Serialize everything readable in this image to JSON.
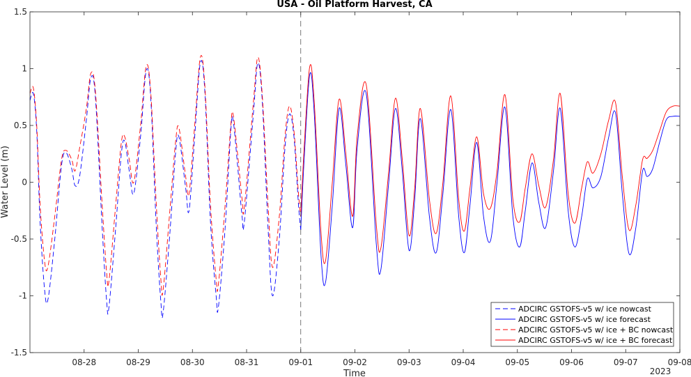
{
  "chart_data": {
    "type": "line",
    "title": "USA - Oil Platform Harvest, CA",
    "xlabel": "Time",
    "ylabel": "Water Level (m)",
    "year_label": "2023",
    "x_ticks": [
      "08-28",
      "08-29",
      "08-30",
      "08-31",
      "09-01",
      "09-02",
      "09-03",
      "09-04",
      "09-05",
      "09-06",
      "09-07",
      "09-08"
    ],
    "y_ticks": [
      -1.5,
      -1,
      -0.5,
      0,
      0.5,
      1,
      1.5
    ],
    "ylim": [
      -1.5,
      1.5
    ],
    "xlim": [
      "2023-08-27 00:00",
      "2023-09-08 00:00"
    ],
    "nowcast_end": "2023-09-01 00:00",
    "grid": false,
    "legend_position": "bottom-right",
    "series": [
      {
        "name": "ADCIRC GSTOFS-v5 w/ ice nowcast",
        "color": "#0000ff",
        "style": "dashed",
        "points": [
          [
            "2023-08-27 00:00",
            0.72
          ],
          [
            "2023-08-27 01:30",
            0.78
          ],
          [
            "2023-08-27 03:00",
            0.45
          ],
          [
            "2023-08-27 04:30",
            -0.35
          ],
          [
            "2023-08-27 06:30",
            -0.95
          ],
          [
            "2023-08-27 08:00",
            -1.03
          ],
          [
            "2023-08-27 11:00",
            -0.5
          ],
          [
            "2023-08-27 14:00",
            0.15
          ],
          [
            "2023-08-27 16:00",
            0.26
          ],
          [
            "2023-08-27 18:30",
            0.12
          ],
          [
            "2023-08-27 20:00",
            -0.03
          ],
          [
            "2023-08-27 22:00",
            0.05
          ],
          [
            "2023-08-28 01:00",
            0.55
          ],
          [
            "2023-08-28 03:00",
            0.92
          ],
          [
            "2023-08-28 05:00",
            0.75
          ],
          [
            "2023-08-28 08:00",
            -0.4
          ],
          [
            "2023-08-28 10:00",
            -1.05
          ],
          [
            "2023-08-28 11:00",
            -1.1
          ],
          [
            "2023-08-28 14:00",
            -0.4
          ],
          [
            "2023-08-28 16:30",
            0.25
          ],
          [
            "2023-08-28 18:00",
            0.36
          ],
          [
            "2023-08-28 20:00",
            0.1
          ],
          [
            "2023-08-28 22:00",
            -0.1
          ],
          [
            "2023-08-29 01:00",
            0.4
          ],
          [
            "2023-08-29 03:30",
            0.98
          ],
          [
            "2023-08-29 05:30",
            0.75
          ],
          [
            "2023-08-29 08:00",
            -0.4
          ],
          [
            "2023-08-29 10:00",
            -1.05
          ],
          [
            "2023-08-29 11:00",
            -1.15
          ],
          [
            "2023-08-29 14:00",
            -0.45
          ],
          [
            "2023-08-29 16:30",
            0.25
          ],
          [
            "2023-08-29 18:00",
            0.4
          ],
          [
            "2023-08-29 21:00",
            -0.05
          ],
          [
            "2023-08-29 22:30",
            -0.25
          ],
          [
            "2023-08-30 01:00",
            0.4
          ],
          [
            "2023-08-30 03:30",
            1.05
          ],
          [
            "2023-08-30 05:30",
            0.8
          ],
          [
            "2023-08-30 08:00",
            -0.35
          ],
          [
            "2023-08-30 10:30",
            -1.0
          ],
          [
            "2023-08-30 11:30",
            -1.1
          ],
          [
            "2023-08-30 14:30",
            -0.4
          ],
          [
            "2023-08-30 17:00",
            0.45
          ],
          [
            "2023-08-30 18:00",
            0.55
          ],
          [
            "2023-08-30 20:00",
            0.15
          ],
          [
            "2023-08-30 22:00",
            -0.3
          ],
          [
            "2023-08-30 23:00",
            -0.35
          ],
          [
            "2023-08-31 03:00",
            0.6
          ],
          [
            "2023-08-31 05:00",
            1.05
          ],
          [
            "2023-08-31 07:00",
            0.7
          ],
          [
            "2023-08-31 09:30",
            -0.4
          ],
          [
            "2023-08-31 11:30",
            -1.0
          ],
          [
            "2023-08-31 14:30",
            -0.5
          ],
          [
            "2023-08-31 17:00",
            0.3
          ],
          [
            "2023-08-31 19:00",
            0.6
          ],
          [
            "2023-08-31 21:00",
            0.4
          ],
          [
            "2023-08-31 23:00",
            -0.2
          ],
          [
            "2023-09-01 00:00",
            -0.42
          ]
        ]
      },
      {
        "name": "ADCIRC GSTOFS-v5 w/ ice forecast",
        "color": "#0000ff",
        "style": "solid",
        "points": [
          [
            "2023-09-01 00:00",
            -0.42
          ],
          [
            "2023-09-01 01:30",
            0.2
          ],
          [
            "2023-09-01 04:00",
            0.95
          ],
          [
            "2023-09-01 06:00",
            0.6
          ],
          [
            "2023-09-01 09:00",
            -0.65
          ],
          [
            "2023-09-01 11:00",
            -0.88
          ],
          [
            "2023-09-01 14:00",
            -0.2
          ],
          [
            "2023-09-01 17:00",
            0.65
          ],
          [
            "2023-09-01 20:00",
            0.15
          ],
          [
            "2023-09-01 23:00",
            -0.4
          ],
          [
            "2023-09-02 01:00",
            0.3
          ],
          [
            "2023-09-02 05:00",
            0.78
          ],
          [
            "2023-09-02 09:30",
            -0.55
          ],
          [
            "2023-09-02 11:30",
            -0.77
          ],
          [
            "2023-09-02 15:00",
            0.0
          ],
          [
            "2023-09-02 18:00",
            0.65
          ],
          [
            "2023-09-02 21:00",
            0.1
          ],
          [
            "2023-09-03 00:00",
            -0.6
          ],
          [
            "2023-09-03 02:30",
            -0.15
          ],
          [
            "2023-09-03 05:00",
            0.56
          ],
          [
            "2023-09-03 09:00",
            -0.3
          ],
          [
            "2023-09-03 12:00",
            -0.62
          ],
          [
            "2023-09-03 15:00",
            -0.1
          ],
          [
            "2023-09-03 18:30",
            0.64
          ],
          [
            "2023-09-03 22:00",
            -0.3
          ],
          [
            "2023-09-04 00:30",
            -0.62
          ],
          [
            "2023-09-04 03:00",
            -0.2
          ],
          [
            "2023-09-04 06:00",
            0.35
          ],
          [
            "2023-09-04 09:00",
            -0.3
          ],
          [
            "2023-09-04 12:00",
            -0.52
          ],
          [
            "2023-09-04 15:00",
            0.0
          ],
          [
            "2023-09-04 18:30",
            0.66
          ],
          [
            "2023-09-04 22:00",
            -0.3
          ],
          [
            "2023-09-05 01:00",
            -0.57
          ],
          [
            "2023-09-05 03:30",
            -0.25
          ],
          [
            "2023-09-05 06:30",
            0.17
          ],
          [
            "2023-09-05 09:30",
            -0.18
          ],
          [
            "2023-09-05 12:30",
            -0.4
          ],
          [
            "2023-09-05 16:00",
            0.1
          ],
          [
            "2023-09-05 19:00",
            0.65
          ],
          [
            "2023-09-05 22:30",
            -0.25
          ],
          [
            "2023-09-06 01:30",
            -0.57
          ],
          [
            "2023-09-06 04:30",
            -0.3
          ],
          [
            "2023-09-06 07:00",
            0.03
          ],
          [
            "2023-09-06 09:30",
            -0.05
          ],
          [
            "2023-09-06 13:00",
            0.05
          ],
          [
            "2023-09-06 16:30",
            0.4
          ],
          [
            "2023-09-06 19:30",
            0.61
          ],
          [
            "2023-09-06 22:30",
            -0.1
          ],
          [
            "2023-09-07 01:30",
            -0.63
          ],
          [
            "2023-09-07 04:30",
            -0.4
          ],
          [
            "2023-09-07 07:30",
            0.1
          ],
          [
            "2023-09-07 09:30",
            0.05
          ],
          [
            "2023-09-07 12:00",
            0.12
          ],
          [
            "2023-09-07 15:00",
            0.35
          ],
          [
            "2023-09-07 18:00",
            0.55
          ],
          [
            "2023-09-07 21:00",
            0.58
          ],
          [
            "2023-09-08 00:00",
            0.58
          ]
        ]
      },
      {
        "name": "ADCIRC GSTOFS-v5 w/ ice + BC nowcast",
        "color": "#ff0000",
        "style": "dashed",
        "points": [
          [
            "2023-08-27 00:00",
            0.78
          ],
          [
            "2023-08-27 01:30",
            0.83
          ],
          [
            "2023-08-27 03:00",
            0.5
          ],
          [
            "2023-08-27 04:30",
            -0.2
          ],
          [
            "2023-08-27 06:30",
            -0.7
          ],
          [
            "2023-08-27 08:00",
            -0.74
          ],
          [
            "2023-08-27 11:00",
            -0.3
          ],
          [
            "2023-08-27 14:00",
            0.2
          ],
          [
            "2023-08-27 16:00",
            0.28
          ],
          [
            "2023-08-27 18:30",
            0.2
          ],
          [
            "2023-08-27 20:00",
            0.1
          ],
          [
            "2023-08-27 22:00",
            0.3
          ],
          [
            "2023-08-28 01:00",
            0.65
          ],
          [
            "2023-08-28 03:00",
            0.96
          ],
          [
            "2023-08-28 05:00",
            0.8
          ],
          [
            "2023-08-28 08:00",
            -0.2
          ],
          [
            "2023-08-28 10:00",
            -0.8
          ],
          [
            "2023-08-28 11:00",
            -0.87
          ],
          [
            "2023-08-28 14:00",
            -0.2
          ],
          [
            "2023-08-28 16:30",
            0.35
          ],
          [
            "2023-08-28 18:00",
            0.4
          ],
          [
            "2023-08-28 20:00",
            0.2
          ],
          [
            "2023-08-28 22:00",
            0.0
          ],
          [
            "2023-08-29 01:00",
            0.5
          ],
          [
            "2023-08-29 03:30",
            1.02
          ],
          [
            "2023-08-29 05:30",
            0.8
          ],
          [
            "2023-08-29 08:00",
            -0.2
          ],
          [
            "2023-08-29 10:00",
            -0.85
          ],
          [
            "2023-08-29 11:00",
            -0.95
          ],
          [
            "2023-08-29 14:00",
            -0.25
          ],
          [
            "2023-08-29 16:30",
            0.35
          ],
          [
            "2023-08-29 18:00",
            0.48
          ],
          [
            "2023-08-29 21:00",
            0.05
          ],
          [
            "2023-08-29 22:30",
            -0.1
          ],
          [
            "2023-08-30 01:00",
            0.5
          ],
          [
            "2023-08-30 03:30",
            1.1
          ],
          [
            "2023-08-30 05:30",
            0.85
          ],
          [
            "2023-08-30 08:00",
            -0.2
          ],
          [
            "2023-08-30 10:30",
            -0.85
          ],
          [
            "2023-08-30 11:30",
            -0.9
          ],
          [
            "2023-08-30 14:30",
            -0.2
          ],
          [
            "2023-08-30 17:00",
            0.5
          ],
          [
            "2023-08-30 18:00",
            0.6
          ],
          [
            "2023-08-30 20:00",
            0.25
          ],
          [
            "2023-08-30 22:00",
            -0.15
          ],
          [
            "2023-08-30 23:00",
            -0.22
          ],
          [
            "2023-08-31 03:00",
            0.7
          ],
          [
            "2023-08-31 05:00",
            1.1
          ],
          [
            "2023-08-31 07:00",
            0.75
          ],
          [
            "2023-08-31 09:30",
            -0.2
          ],
          [
            "2023-08-31 11:30",
            -0.75
          ],
          [
            "2023-08-31 14:30",
            -0.3
          ],
          [
            "2023-08-31 17:00",
            0.4
          ],
          [
            "2023-08-31 19:00",
            0.67
          ],
          [
            "2023-08-31 21:00",
            0.45
          ],
          [
            "2023-08-31 23:00",
            -0.1
          ],
          [
            "2023-09-01 00:00",
            -0.3
          ]
        ]
      },
      {
        "name": "ADCIRC GSTOFS-v5 w/ ice + BC forecast",
        "color": "#ff0000",
        "style": "solid",
        "points": [
          [
            "2023-09-01 00:00",
            -0.3
          ],
          [
            "2023-09-01 01:30",
            0.3
          ],
          [
            "2023-09-01 04:00",
            1.02
          ],
          [
            "2023-09-01 06:00",
            0.7
          ],
          [
            "2023-09-01 09:00",
            -0.45
          ],
          [
            "2023-09-01 11:00",
            -0.69
          ],
          [
            "2023-09-01 14:00",
            0.0
          ],
          [
            "2023-09-01 17:00",
            0.73
          ],
          [
            "2023-09-01 20:00",
            0.25
          ],
          [
            "2023-09-01 23:00",
            -0.3
          ],
          [
            "2023-09-02 01:00",
            0.4
          ],
          [
            "2023-09-02 05:00",
            0.86
          ],
          [
            "2023-09-02 09:30",
            -0.38
          ],
          [
            "2023-09-02 11:30",
            -0.58
          ],
          [
            "2023-09-02 15:00",
            0.1
          ],
          [
            "2023-09-02 18:00",
            0.74
          ],
          [
            "2023-09-02 21:00",
            0.2
          ],
          [
            "2023-09-03 00:00",
            -0.47
          ],
          [
            "2023-09-03 02:30",
            -0.05
          ],
          [
            "2023-09-03 05:00",
            0.65
          ],
          [
            "2023-09-03 09:00",
            -0.15
          ],
          [
            "2023-09-03 12:00",
            -0.45
          ],
          [
            "2023-09-03 15:00",
            0.0
          ],
          [
            "2023-09-03 18:30",
            0.76
          ],
          [
            "2023-09-03 22:00",
            -0.15
          ],
          [
            "2023-09-04 00:30",
            -0.43
          ],
          [
            "2023-09-04 03:00",
            -0.05
          ],
          [
            "2023-09-04 06:00",
            0.4
          ],
          [
            "2023-09-04 09:00",
            -0.1
          ],
          [
            "2023-09-04 12:00",
            -0.23
          ],
          [
            "2023-09-04 15:00",
            0.1
          ],
          [
            "2023-09-04 18:30",
            0.77
          ],
          [
            "2023-09-04 22:00",
            -0.15
          ],
          [
            "2023-09-05 01:00",
            -0.35
          ],
          [
            "2023-09-05 03:30",
            -0.05
          ],
          [
            "2023-09-05 06:30",
            0.25
          ],
          [
            "2023-09-05 09:30",
            -0.03
          ],
          [
            "2023-09-05 12:30",
            -0.22
          ],
          [
            "2023-09-05 16:00",
            0.2
          ],
          [
            "2023-09-05 19:00",
            0.78
          ],
          [
            "2023-09-05 22:30",
            -0.1
          ],
          [
            "2023-09-06 01:30",
            -0.36
          ],
          [
            "2023-09-06 04:30",
            -0.05
          ],
          [
            "2023-09-06 07:00",
            0.18
          ],
          [
            "2023-09-06 09:30",
            0.08
          ],
          [
            "2023-09-06 13:00",
            0.25
          ],
          [
            "2023-09-06 16:30",
            0.55
          ],
          [
            "2023-09-06 19:30",
            0.7
          ],
          [
            "2023-09-06 22:30",
            0.05
          ],
          [
            "2023-09-07 01:30",
            -0.42
          ],
          [
            "2023-09-07 04:30",
            -0.2
          ],
          [
            "2023-09-07 07:30",
            0.2
          ],
          [
            "2023-09-07 09:30",
            0.21
          ],
          [
            "2023-09-07 12:00",
            0.28
          ],
          [
            "2023-09-07 15:00",
            0.45
          ],
          [
            "2023-09-07 18:00",
            0.62
          ],
          [
            "2023-09-07 21:00",
            0.67
          ],
          [
            "2023-09-08 00:00",
            0.67
          ]
        ]
      }
    ]
  }
}
